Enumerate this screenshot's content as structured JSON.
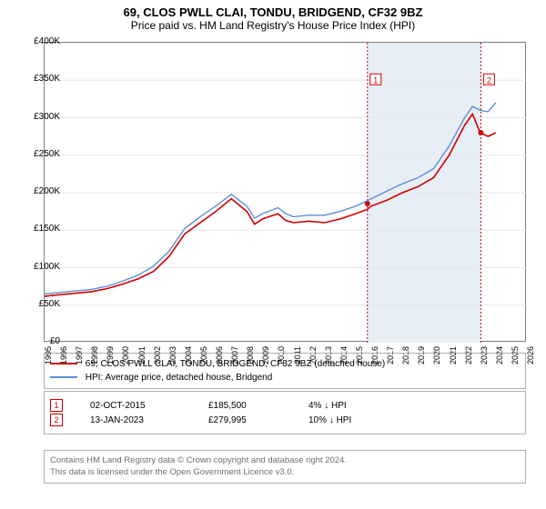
{
  "title": "69, CLOS PWLL CLAI, TONDU, BRIDGEND, CF32 9BZ",
  "subtitle": "Price paid vs. HM Land Registry's House Price Index (HPI)",
  "chart": {
    "type": "line",
    "background_color": "#ffffff",
    "grid_color": "#e6e6e6",
    "border_color": "#808080",
    "shaded_region_color": "#e8eef5",
    "shaded_region": {
      "x_start": 2015.75,
      "x_end": 2023.04
    },
    "xlim": [
      1995,
      2026
    ],
    "xtick_step": 1,
    "xtick_labels": [
      "1995",
      "1996",
      "1997",
      "1998",
      "1999",
      "2000",
      "2001",
      "2002",
      "2003",
      "2004",
      "2005",
      "2006",
      "2007",
      "2008",
      "2009",
      "2010",
      "2011",
      "2012",
      "2013",
      "2014",
      "2015",
      "2016",
      "2017",
      "2018",
      "2019",
      "2020",
      "2021",
      "2022",
      "2023",
      "2024",
      "2025",
      "2026"
    ],
    "ylim": [
      0,
      400000
    ],
    "ytick_step": 50000,
    "ytick_labels": [
      "£0",
      "£50K",
      "£100K",
      "£150K",
      "£200K",
      "£250K",
      "£300K",
      "£350K",
      "£400K"
    ],
    "label_fontsize": 10,
    "markers": [
      {
        "id": "1",
        "x": 2015.75,
        "y": 350000
      },
      {
        "id": "2",
        "x": 2023.04,
        "y": 350000
      }
    ],
    "marker_box_border": "#d00000",
    "vertical_dash_color": "#d00000",
    "series": [
      {
        "name": "69, CLOS PWLL CLAI, TONDU, BRIDGEND, CF32 9BZ (detached house)",
        "color": "#d00000",
        "line_width": 1.6,
        "data_points": [
          [
            1995,
            62000
          ],
          [
            1996,
            64000
          ],
          [
            1997,
            66000
          ],
          [
            1998,
            68000
          ],
          [
            1999,
            72000
          ],
          [
            2000,
            78000
          ],
          [
            2001,
            85000
          ],
          [
            2002,
            95000
          ],
          [
            2003,
            115000
          ],
          [
            2004,
            145000
          ],
          [
            2005,
            160000
          ],
          [
            2006,
            175000
          ],
          [
            2007,
            192000
          ],
          [
            2008,
            175000
          ],
          [
            2008.5,
            158000
          ],
          [
            2009,
            165000
          ],
          [
            2010,
            172000
          ],
          [
            2010.5,
            163000
          ],
          [
            2011,
            160000
          ],
          [
            2012,
            162000
          ],
          [
            2013,
            160000
          ],
          [
            2014,
            165000
          ],
          [
            2015,
            172000
          ],
          [
            2015.75,
            178000
          ],
          [
            2016,
            182000
          ],
          [
            2017,
            190000
          ],
          [
            2018,
            200000
          ],
          [
            2019,
            208000
          ],
          [
            2020,
            220000
          ],
          [
            2021,
            250000
          ],
          [
            2022,
            290000
          ],
          [
            2022.5,
            305000
          ],
          [
            2023,
            280000
          ],
          [
            2023.5,
            275000
          ],
          [
            2024,
            280000
          ]
        ],
        "sale_points": [
          {
            "x": 2015.75,
            "y": 185500
          },
          {
            "x": 2023.04,
            "y": 279995
          }
        ]
      },
      {
        "name": "HPI: Average price, detached house, Bridgend",
        "color": "#5b8fd6",
        "line_width": 1.4,
        "data_points": [
          [
            1995,
            65000
          ],
          [
            1996,
            67000
          ],
          [
            1997,
            69000
          ],
          [
            1998,
            71000
          ],
          [
            1999,
            75000
          ],
          [
            2000,
            82000
          ],
          [
            2001,
            90000
          ],
          [
            2002,
            102000
          ],
          [
            2003,
            122000
          ],
          [
            2004,
            152000
          ],
          [
            2005,
            168000
          ],
          [
            2006,
            182000
          ],
          [
            2007,
            198000
          ],
          [
            2008,
            182000
          ],
          [
            2008.5,
            166000
          ],
          [
            2009,
            172000
          ],
          [
            2010,
            180000
          ],
          [
            2010.5,
            172000
          ],
          [
            2011,
            168000
          ],
          [
            2012,
            170000
          ],
          [
            2013,
            170000
          ],
          [
            2014,
            175000
          ],
          [
            2015,
            182000
          ],
          [
            2016,
            192000
          ],
          [
            2017,
            202000
          ],
          [
            2018,
            212000
          ],
          [
            2019,
            220000
          ],
          [
            2020,
            232000
          ],
          [
            2021,
            262000
          ],
          [
            2022,
            300000
          ],
          [
            2022.5,
            315000
          ],
          [
            2023,
            310000
          ],
          [
            2023.5,
            308000
          ],
          [
            2024,
            320000
          ]
        ]
      }
    ]
  },
  "legend": {
    "border_color": "#b0b0b0",
    "fontsize": 10,
    "items": [
      {
        "color": "#d00000",
        "label": "69, CLOS PWLL CLAI, TONDU, BRIDGEND, CF32 9BZ (detached house)"
      },
      {
        "color": "#5b8fd6",
        "label": "HPI: Average price, detached house, Bridgend"
      }
    ]
  },
  "transactions": {
    "rows": [
      {
        "marker": "1",
        "date": "02-OCT-2015",
        "price": "£185,500",
        "diff": "4% ↓ HPI"
      },
      {
        "marker": "2",
        "date": "13-JAN-2023",
        "price": "£279,995",
        "diff": "10% ↓ HPI"
      }
    ]
  },
  "copyright": {
    "line1": "Contains HM Land Registry data © Crown copyright and database right 2024.",
    "line2": "This data is licensed under the Open Government Licence v3.0.",
    "text_color": "#707070"
  }
}
